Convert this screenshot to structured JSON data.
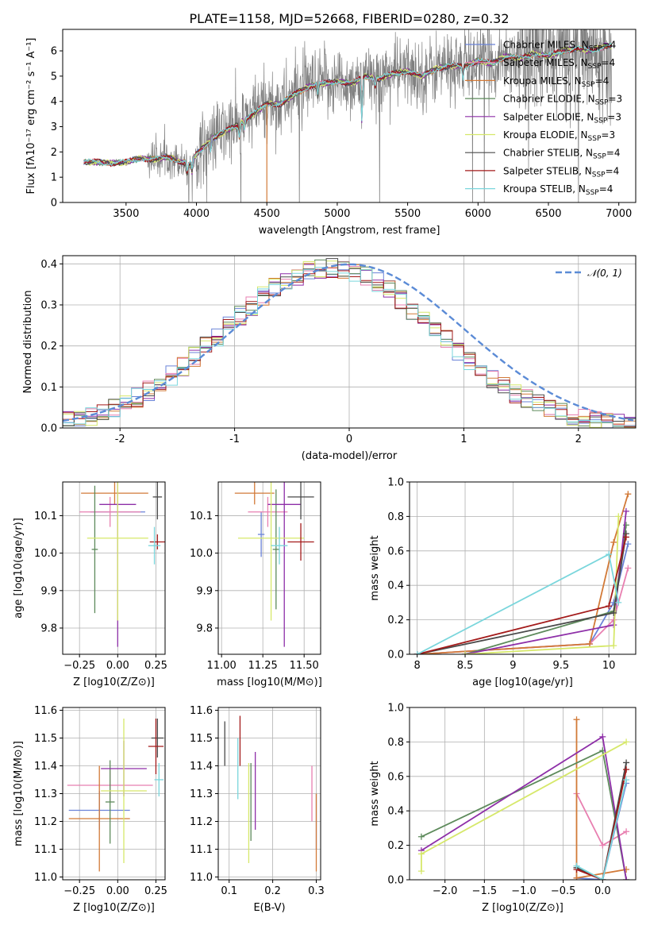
{
  "figure_title": "PLATE=1158, MJD=52668, FIBERID=0280, z=0.32",
  "colors": {
    "chabrier_miles": "#6a83d8",
    "salpeter_miles": "#e87fb0",
    "kroupa_miles": "#d27a38",
    "chabrier_elodie": "#5d8a5b",
    "salpeter_elodie": "#8e2fa8",
    "kroupa_elodie": "#d6e86a",
    "chabrier_stelib": "#4a4a4a",
    "salpeter_stelib": "#a31a1a",
    "kroupa_stelib": "#7ad6dc",
    "data_gray": "#808080",
    "normal_curve": "#5b8bd6"
  },
  "chart_data": [
    {
      "id": "spectrum",
      "type": "line",
      "title": "PLATE=1158, MJD=52668, FIBERID=0280, z=0.32",
      "xlabel": "wavelength [Angstrom, rest frame]",
      "ylabel": "Flux [fλ10⁻¹⁷ erg cm⁻² s⁻¹ A⁻¹]",
      "xlim": [
        3050,
        7120
      ],
      "ylim": [
        0,
        6.85
      ],
      "xticks": [
        3500,
        4000,
        4500,
        5000,
        5500,
        6000,
        6500,
        7000
      ],
      "yticks": [
        0,
        1,
        2,
        3,
        4,
        5,
        6
      ],
      "legend_position": "top-right",
      "legend": [
        "Chabrier MILES, NSSP=4",
        "Salpeter MILES, NSSP=4",
        "Kroupa MILES, NSSP=4",
        "Chabrier ELODIE, NSSP=3",
        "Salpeter ELODIE, NSSP=3",
        "Kroupa ELODIE, NSSP=3",
        "Chabrier STELIB, NSSP=4",
        "Salpeter STELIB, NSSP=4",
        "Kroupa STELIB, NSSP=4"
      ],
      "continuum": {
        "x": [
          3200,
          3300,
          3400,
          3500,
          3600,
          3700,
          3800,
          3900,
          3950,
          4000,
          4100,
          4200,
          4300,
          4400,
          4500,
          4600,
          4700,
          4800,
          4900,
          5000,
          5100,
          5200,
          5300,
          5400,
          5500,
          5600,
          5700,
          5800,
          5900,
          6000,
          6100,
          6200,
          6300,
          6400,
          6500,
          6600,
          6700,
          6800,
          6900
        ],
        "y": [
          1.6,
          1.6,
          1.55,
          1.6,
          1.75,
          1.7,
          1.8,
          1.6,
          1.5,
          1.9,
          2.5,
          2.8,
          3.1,
          3.5,
          3.9,
          3.9,
          4.3,
          4.6,
          4.7,
          4.8,
          4.7,
          5.0,
          4.9,
          5.1,
          5.2,
          5.0,
          5.3,
          5.4,
          5.4,
          5.6,
          5.5,
          5.8,
          5.7,
          5.9,
          5.8,
          6.0,
          6.1,
          6.0,
          6.2
        ]
      },
      "absorption_lines": [
        {
          "x": 3934,
          "y": 1.1
        },
        {
          "x": 3969,
          "y": 1.2
        },
        {
          "x": 4102,
          "y": 2.0
        },
        {
          "x": 4304,
          "y": 2.6
        },
        {
          "x": 4341,
          "y": 2.9
        },
        {
          "x": 4861,
          "y": 4.2
        },
        {
          "x": 5175,
          "y": 3.2
        },
        {
          "x": 5270,
          "y": 4.6
        },
        {
          "x": 5893,
          "y": 4.9
        }
      ]
    },
    {
      "id": "residual_histogram",
      "type": "bar",
      "xlabel": "(data-model)/error",
      "ylabel": "Normed distribution",
      "xlim": [
        -2.5,
        2.5
      ],
      "ylim": [
        0,
        0.42
      ],
      "xticks": [
        -2,
        -1,
        0,
        1,
        2
      ],
      "yticks": [
        0.0,
        0.1,
        0.2,
        0.3,
        0.4
      ],
      "legend_position": "top-right",
      "curve_label": "𝒩(0, 1)",
      "bin_width": 0.1
    },
    {
      "id": "age_vs_Z",
      "type": "scatter",
      "xlabel": "Z [log10(Z/Z⊙)]",
      "ylabel": "age  [log10(age/yr)]",
      "xlim": [
        -0.36,
        0.31
      ],
      "ylim": [
        9.73,
        10.19
      ],
      "xticks": [
        -0.25,
        0.0,
        0.25
      ],
      "xtick_labels": [
        "−0.25",
        "0.00",
        "0.25"
      ],
      "yticks": [
        9.8,
        9.9,
        10.0,
        10.1
      ],
      "points": [
        {
          "model": "chabrier_miles",
          "x": 0.0,
          "xerr": 0.18,
          "y": 10.11,
          "yerr": 0.02
        },
        {
          "model": "salpeter_miles",
          "x": -0.05,
          "xerr": 0.2,
          "y": 10.11,
          "yerr": 0.04
        },
        {
          "model": "kroupa_miles",
          "x": -0.02,
          "xerr": 0.22,
          "y": 10.16,
          "yerr": 0.03
        },
        {
          "model": "chabrier_elodie",
          "x": -0.15,
          "xerr": 0.02,
          "y": 10.01,
          "yerr": 0.17
        },
        {
          "model": "salpeter_elodie",
          "x": 0.0,
          "xerr": 0.12,
          "y": 10.13,
          "yerr": 0.38
        },
        {
          "model": "kroupa_elodie",
          "x": 0.0,
          "xerr": 0.2,
          "y": 10.04,
          "yerr": 0.22
        },
        {
          "model": "chabrier_stelib",
          "x": 0.26,
          "xerr": 0.03,
          "y": 10.15,
          "yerr": 0.06
        },
        {
          "model": "salpeter_stelib",
          "x": 0.26,
          "xerr": 0.05,
          "y": 10.03,
          "yerr": 0.02
        },
        {
          "model": "kroupa_stelib",
          "x": 0.24,
          "xerr": 0.04,
          "y": 10.02,
          "yerr": 0.05
        }
      ]
    },
    {
      "id": "age_vs_mass",
      "type": "scatter",
      "xlabel": "mass [log10(M/M⊙)]",
      "ylabel": "",
      "xlim": [
        10.98,
        11.6
      ],
      "ylim": [
        9.73,
        10.19
      ],
      "xticks": [
        11.0,
        11.25,
        11.5
      ],
      "xtick_labels": [
        "11.00",
        "11.25",
        "11.50"
      ],
      "yticks": [
        9.8,
        9.9,
        10.0,
        10.1
      ],
      "points": [
        {
          "model": "chabrier_miles",
          "x": 11.24,
          "xerr": 0.02,
          "y": 10.05,
          "yerr": 0.06
        },
        {
          "model": "salpeter_miles",
          "x": 11.28,
          "xerr": 0.12,
          "y": 10.11,
          "yerr": 0.04
        },
        {
          "model": "kroupa_miles",
          "x": 11.2,
          "xerr": 0.12,
          "y": 10.16,
          "yerr": 0.03
        },
        {
          "model": "chabrier_elodie",
          "x": 11.33,
          "xerr": 0.02,
          "y": 10.01,
          "yerr": 0.16
        },
        {
          "model": "salpeter_elodie",
          "x": 11.38,
          "xerr": 0.1,
          "y": 10.13,
          "yerr": 0.38
        },
        {
          "model": "kroupa_elodie",
          "x": 11.3,
          "xerr": 0.2,
          "y": 10.04,
          "yerr": 0.22
        },
        {
          "model": "chabrier_stelib",
          "x": 11.48,
          "xerr": 0.08,
          "y": 10.15,
          "yerr": 0.06
        },
        {
          "model": "salpeter_stelib",
          "x": 11.48,
          "xerr": 0.08,
          "y": 10.03,
          "yerr": 0.05
        },
        {
          "model": "kroupa_stelib",
          "x": 11.35,
          "xerr": 0.05,
          "y": 10.02,
          "yerr": 0.05
        }
      ]
    },
    {
      "id": "mass_weight_vs_age",
      "type": "line",
      "xlabel": "age  [log10(age/yr)]",
      "ylabel": "mass weight",
      "xlim": [
        7.92,
        10.28
      ],
      "ylim": [
        0,
        1.0
      ],
      "xticks": [
        8.0,
        8.5,
        9.0,
        9.5,
        10.0
      ],
      "yticks": [
        0.0,
        0.2,
        0.4,
        0.6,
        0.8,
        1.0
      ],
      "series": [
        {
          "model": "chabrier_miles",
          "x": [
            8.0,
            9.8,
            10.05,
            10.2
          ],
          "y": [
            0.0,
            0.06,
            0.3,
            0.64
          ]
        },
        {
          "model": "salpeter_miles",
          "x": [
            8.0,
            9.8,
            10.05,
            10.2
          ],
          "y": [
            0.0,
            0.06,
            0.2,
            0.5
          ]
        },
        {
          "model": "kroupa_miles",
          "x": [
            8.0,
            9.8,
            10.05,
            10.2
          ],
          "y": [
            0.0,
            0.06,
            0.65,
            0.93
          ]
        },
        {
          "model": "chabrier_elodie",
          "x": [
            8.5,
            10.05,
            10.18
          ],
          "y": [
            0.0,
            0.25,
            0.75
          ]
        },
        {
          "model": "salpeter_elodie",
          "x": [
            8.5,
            10.05,
            10.18
          ],
          "y": [
            0.0,
            0.17,
            0.83
          ]
        },
        {
          "model": "kroupa_elodie",
          "x": [
            8.5,
            10.05,
            10.1
          ],
          "y": [
            0.0,
            0.05,
            0.8
          ]
        },
        {
          "model": "chabrier_stelib",
          "x": [
            8.0,
            10.05,
            10.18
          ],
          "y": [
            0.0,
            0.24,
            0.7
          ]
        },
        {
          "model": "salpeter_stelib",
          "x": [
            8.0,
            10.0,
            10.18
          ],
          "y": [
            0.0,
            0.28,
            0.68
          ]
        },
        {
          "model": "kroupa_stelib",
          "x": [
            8.0,
            10.0,
            10.1
          ],
          "y": [
            0.0,
            0.58,
            0.3
          ]
        }
      ]
    },
    {
      "id": "mass_vs_Z",
      "type": "scatter",
      "xlabel": "Z [log10(Z/Z⊙)]",
      "ylabel": "mass [log10(M/M⊙)]",
      "xlim": [
        -0.36,
        0.31
      ],
      "ylim": [
        10.99,
        11.61
      ],
      "xticks": [
        -0.25,
        0.0,
        0.25
      ],
      "xtick_labels": [
        "−0.25",
        "0.00",
        "0.25"
      ],
      "yticks": [
        11.0,
        11.1,
        11.2,
        11.3,
        11.4,
        11.5,
        11.6
      ],
      "points": [
        {
          "model": "chabrier_miles",
          "x": -0.12,
          "xerr": 0.2,
          "y": 11.24,
          "yerr": 0.07
        },
        {
          "model": "salpeter_miles",
          "x": -0.05,
          "xerr": 0.28,
          "y": 11.33,
          "yerr": 0.06
        },
        {
          "model": "kroupa_miles",
          "x": -0.12,
          "xerr": 0.2,
          "y": 11.21,
          "yerr": 0.19
        },
        {
          "model": "chabrier_elodie",
          "x": -0.05,
          "xerr": 0.03,
          "y": 11.27,
          "yerr": 0.15
        },
        {
          "model": "salpeter_elodie",
          "x": 0.04,
          "xerr": 0.15,
          "y": 11.39,
          "yerr": 0.1
        },
        {
          "model": "kroupa_elodie",
          "x": 0.04,
          "xerr": 0.15,
          "y": 11.31,
          "yerr": 0.26
        },
        {
          "model": "chabrier_stelib",
          "x": 0.26,
          "xerr": 0.04,
          "y": 11.5,
          "yerr": 0.07
        },
        {
          "model": "salpeter_stelib",
          "x": 0.25,
          "xerr": 0.05,
          "y": 11.47,
          "yerr": 0.1
        },
        {
          "model": "kroupa_stelib",
          "x": 0.27,
          "xerr": 0.03,
          "y": 11.35,
          "yerr": 0.06
        }
      ]
    },
    {
      "id": "mass_vs_ebv",
      "type": "scatter",
      "xlabel": "E(B-V)",
      "ylabel": "",
      "xlim": [
        0.075,
        0.31
      ],
      "ylim": [
        10.99,
        11.61
      ],
      "xticks": [
        0.1,
        0.2,
        0.3
      ],
      "xtick_labels": [
        "0.1",
        "0.2",
        "0.3"
      ],
      "yticks": [
        11.0,
        11.1,
        11.2,
        11.3,
        11.4,
        11.5,
        11.6
      ],
      "points": [
        {
          "model": "chabrier_miles",
          "x": 0.3,
          "xerr": 0.0,
          "y": 11.2,
          "yerr": 0.1
        },
        {
          "model": "salpeter_miles",
          "x": 0.29,
          "xerr": 0.0,
          "y": 11.3,
          "yerr": 0.1
        },
        {
          "model": "kroupa_miles",
          "x": 0.3,
          "xerr": 0.0,
          "y": 11.16,
          "yerr": 0.14
        },
        {
          "model": "chabrier_elodie",
          "x": 0.15,
          "xerr": 0.0,
          "y": 11.27,
          "yerr": 0.14
        },
        {
          "model": "salpeter_elodie",
          "x": 0.16,
          "xerr": 0.0,
          "y": 11.31,
          "yerr": 0.14
        },
        {
          "model": "kroupa_elodie",
          "x": 0.145,
          "xerr": 0.0,
          "y": 11.23,
          "yerr": 0.18
        },
        {
          "model": "chabrier_stelib",
          "x": 0.09,
          "xerr": 0.0,
          "y": 11.48,
          "yerr": 0.08
        },
        {
          "model": "salpeter_stelib",
          "x": 0.125,
          "xerr": 0.0,
          "y": 11.49,
          "yerr": 0.09
        },
        {
          "model": "kroupa_stelib",
          "x": 0.12,
          "xerr": 0.0,
          "y": 11.39,
          "yerr": 0.11
        }
      ]
    },
    {
      "id": "mass_weight_vs_Z",
      "type": "line",
      "xlabel": "Z [log10(Z/Z⊙)]",
      "ylabel": "mass weight",
      "xlim": [
        -2.45,
        0.42
      ],
      "ylim": [
        0,
        1.0
      ],
      "xticks": [
        -2.0,
        -1.5,
        -1.0,
        -0.5,
        0.0
      ],
      "xtick_labels": [
        "−2.0",
        "−1.5",
        "−1.0",
        "−0.5",
        "0.0"
      ],
      "yticks": [
        0.0,
        0.2,
        0.4,
        0.6,
        0.8,
        1.0
      ],
      "series": [
        {
          "model": "chabrier_miles",
          "x": [
            -0.33,
            0.0,
            0.3
          ],
          "y": [
            0.01,
            0.0,
            0.56
          ]
        },
        {
          "model": "salpeter_miles",
          "x": [
            -0.33,
            0.0,
            0.3
          ],
          "y": [
            0.5,
            0.2,
            0.28
          ]
        },
        {
          "model": "kroupa_miles",
          "x": [
            -0.33,
            -0.33,
            0.3
          ],
          "y": [
            0.93,
            0.01,
            0.06
          ]
        },
        {
          "model": "chabrier_elodie",
          "x": [
            -2.3,
            0.0,
            0.3
          ],
          "y": [
            0.25,
            0.75,
            0.0
          ]
        },
        {
          "model": "salpeter_elodie",
          "x": [
            -2.3,
            0.0,
            0.3
          ],
          "y": [
            0.17,
            0.83,
            0.0
          ]
        },
        {
          "model": "kroupa_elodie",
          "x": [
            -2.3,
            -2.3,
            0.3
          ],
          "y": [
            0.05,
            0.15,
            0.8
          ]
        },
        {
          "model": "chabrier_stelib",
          "x": [
            -0.33,
            0.0,
            0.3
          ],
          "y": [
            0.07,
            0.0,
            0.68
          ]
        },
        {
          "model": "salpeter_stelib",
          "x": [
            -0.33,
            0.0,
            0.3
          ],
          "y": [
            0.06,
            0.0,
            0.64
          ]
        },
        {
          "model": "kroupa_stelib",
          "x": [
            -0.33,
            0.0,
            0.3
          ],
          "y": [
            0.08,
            0.0,
            0.58
          ]
        }
      ]
    }
  ]
}
